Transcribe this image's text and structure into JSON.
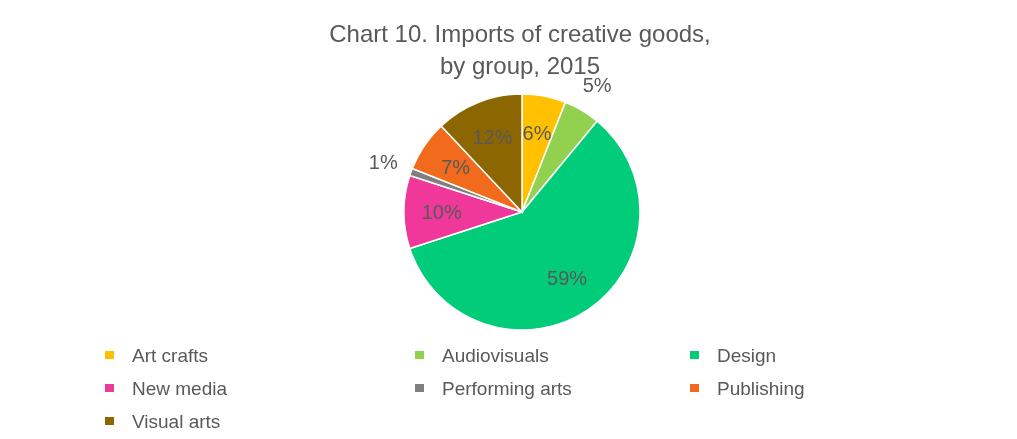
{
  "chart_data": {
    "type": "pie",
    "title": "Chart 10. Imports of creative goods, by group, 2015",
    "categories": [
      "Art crafts",
      "Audiovisuals",
      "Design",
      "New media",
      "Performing arts",
      "Publishing",
      "Visual arts"
    ],
    "values": [
      6,
      5,
      59,
      10,
      1,
      7,
      12
    ],
    "colors": [
      "#ffc000",
      "#92d050",
      "#00cc7a",
      "#f0389a",
      "#7f7f7f",
      "#f26b1d",
      "#8c6600"
    ],
    "value_labels": [
      "6%",
      "5%",
      "59%",
      "10%",
      "1%",
      "7%",
      "12%"
    ],
    "legend": "bottom"
  }
}
